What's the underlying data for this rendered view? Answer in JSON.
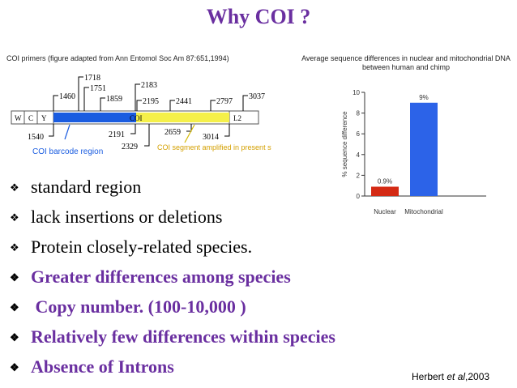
{
  "slide": {
    "title": "Why COI ?",
    "primer_figure": {
      "caption": "COI primers (figure adapted from Ann Entomol Soc Am 87:651,1994)",
      "segments": [
        "W",
        "C",
        "Y",
        "COI",
        "L2"
      ],
      "positions_top": [
        "1460",
        "1718",
        "1751",
        "1859",
        "2183",
        "2195",
        "2441",
        "2797",
        "3037"
      ],
      "positions_bottom": [
        "1540",
        "2191",
        "2329",
        "2659",
        "3014"
      ],
      "barcode_region_label": "COI barcode region",
      "amplified_segment_label": "COI segment amplified in present study",
      "colors": {
        "barcode": "#1a5ce0",
        "amplified": "#f5f04a",
        "gene_bar": "#ffffff"
      }
    },
    "bar_chart_title": "Average sequence differences in nuclear and mitochondrial DNA between human and chimp",
    "bullets": [
      {
        "text": "standard region",
        "emphasis": false
      },
      {
        "text": "lack insertions or deletions",
        "emphasis": false
      },
      {
        "text": "Protein closely-related species.",
        "emphasis": false
      },
      {
        "text": "Greater differences among species",
        "emphasis": true
      },
      {
        "text": " Copy number. (100-10,000 )",
        "emphasis": true
      },
      {
        "text": "Relatively few differences within species",
        "emphasis": true
      },
      {
        "text": "Absence of Introns",
        "emphasis": true
      }
    ],
    "bullet_marker": "❖",
    "citation": {
      "author": "Herbert",
      "etal": "et al",
      "year": ",2003"
    },
    "colors": {
      "title": "#6a2fa0",
      "emphasis": "#6a2fa0"
    }
  },
  "chart_data": {
    "type": "bar",
    "title": "Average sequence differences in nuclear and mitochondrial DNA between human and chimp",
    "categories": [
      "Nuclear",
      "Mitochondrial"
    ],
    "values": [
      0.9,
      9
    ],
    "data_labels": [
      "0.9%",
      "9%"
    ],
    "colors": [
      "#d42a14",
      "#2c63e8"
    ],
    "xlabel": "",
    "ylabel": "% sequence difference",
    "ylim": [
      0,
      10
    ],
    "yticks": [
      "0",
      "2",
      "4",
      "6",
      "8",
      "10"
    ]
  }
}
